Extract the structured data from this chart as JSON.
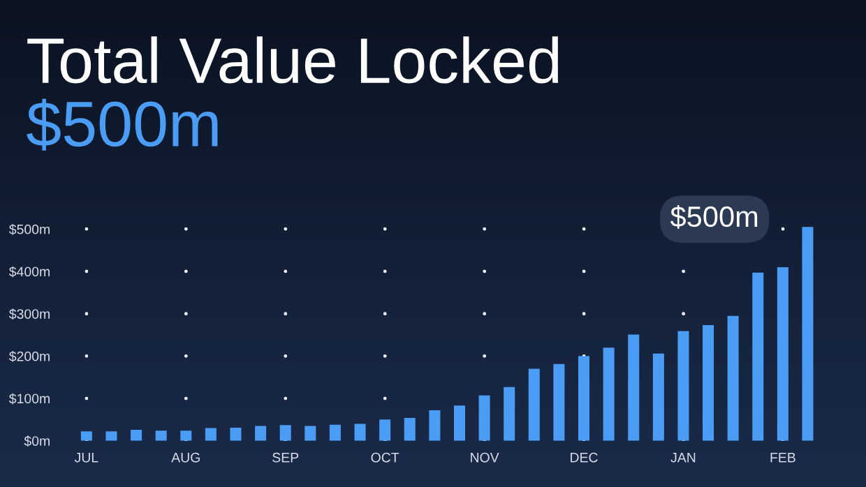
{
  "chart_data": {
    "type": "bar",
    "title": "Total Value Locked",
    "subtitle": "$500m",
    "categories": [
      "JUL",
      null,
      null,
      null,
      "AUG",
      null,
      null,
      null,
      "SEP",
      null,
      null,
      null,
      "OCT",
      null,
      null,
      null,
      "NOV",
      null,
      null,
      null,
      "DEC",
      null,
      null,
      null,
      "JAN",
      null,
      null,
      null,
      "FEB",
      null
    ],
    "values": [
      22,
      22,
      26,
      24,
      24,
      30,
      31,
      35,
      37,
      35,
      38,
      40,
      50,
      54,
      72,
      83,
      107,
      127,
      170,
      181,
      200,
      220,
      251,
      206,
      259,
      273,
      295,
      397,
      410,
      505
    ],
    "color": "#4a9cf5",
    "ylim": [
      0,
      520
    ],
    "yticks": [
      {
        "value": 0,
        "label": "$0m"
      },
      {
        "value": 100,
        "label": "$100m"
      },
      {
        "value": 200,
        "label": "$200m"
      },
      {
        "value": 300,
        "label": "$300m"
      },
      {
        "value": 400,
        "label": "$400m"
      },
      {
        "value": 500,
        "label": "$500m"
      }
    ],
    "grid": true,
    "annotations": [
      "$500m"
    ]
  }
}
